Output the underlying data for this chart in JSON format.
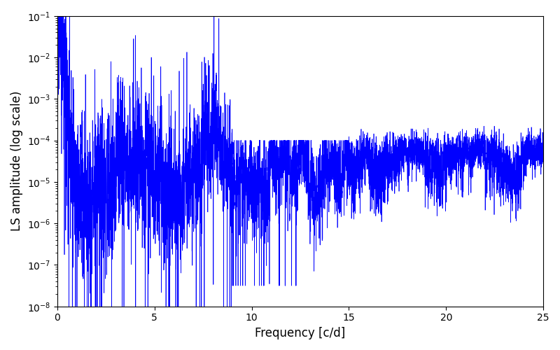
{
  "xlabel": "Frequency [c/d]",
  "ylabel": "LS amplitude (log scale)",
  "line_color": "#0000ff",
  "xlim": [
    0,
    25
  ],
  "ylim_log_min": -8,
  "ylim_log_max": -1,
  "figsize": [
    8.0,
    5.0
  ],
  "dpi": 100,
  "background_color": "#ffffff",
  "seed": 7,
  "n_points": 8000,
  "freq_max": 25.0
}
